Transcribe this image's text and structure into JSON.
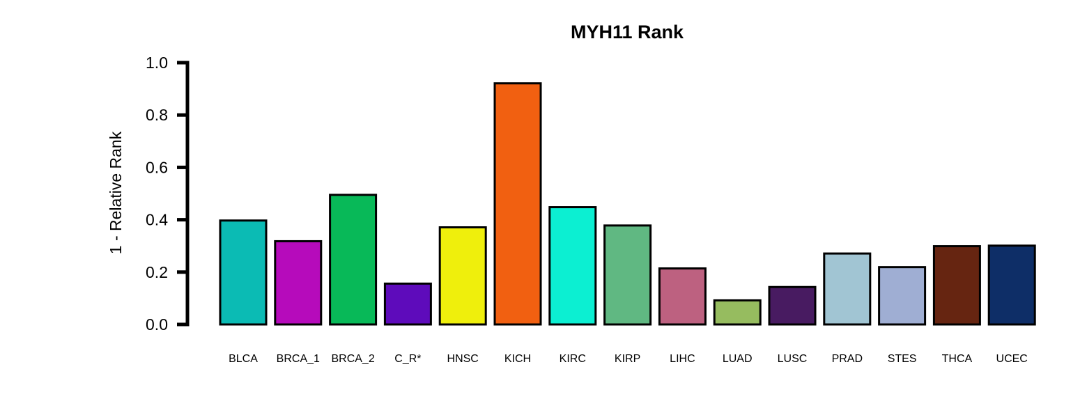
{
  "chart_data": {
    "type": "bar",
    "title": "MYH11 Rank",
    "xlabel": "",
    "ylabel": "1 - Relative Rank",
    "ylim": [
      0,
      1
    ],
    "yticks": [
      "0.0",
      "0.2",
      "0.4",
      "0.6",
      "0.8",
      "1.0"
    ],
    "categories": [
      "BLCA",
      "BRCA_1",
      "BRCA_2",
      "C_R*",
      "HNSC",
      "KICH",
      "KIRC",
      "KIRP",
      "LIHC",
      "LUAD",
      "LUSC",
      "PRAD",
      "STES",
      "THCA",
      "UCEC"
    ],
    "values": [
      0.397,
      0.318,
      0.495,
      0.156,
      0.371,
      0.921,
      0.448,
      0.378,
      0.214,
      0.092,
      0.143,
      0.271,
      0.219,
      0.299,
      0.301
    ],
    "colors": [
      "#0BBBB4",
      "#B60BBB",
      "#08B958",
      "#5E0BBB",
      "#EFEF0C",
      "#F16011",
      "#0CEFD2",
      "#60B882",
      "#BD6180",
      "#96BC5F",
      "#481B61",
      "#A1C5D3",
      "#9FAED3",
      "#662511",
      "#0E2E67"
    ],
    "grid": false,
    "legend": "none"
  }
}
